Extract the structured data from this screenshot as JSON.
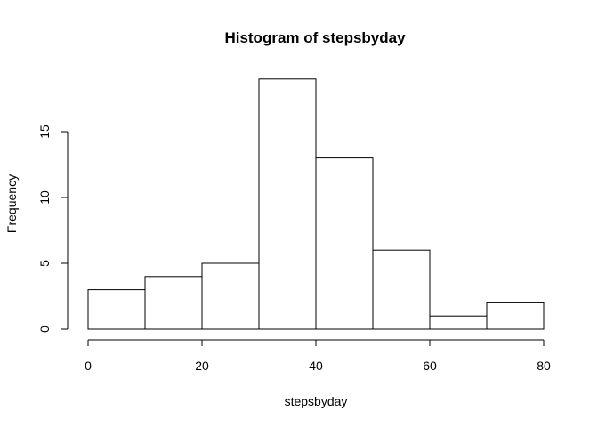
{
  "chart_data": {
    "type": "bar",
    "title": "Histogram of stepsbyday",
    "xlabel": "stepsbyday",
    "ylabel": "Frequency",
    "bins": [
      {
        "from": 0,
        "to": 10,
        "count": 3
      },
      {
        "from": 10,
        "to": 20,
        "count": 4
      },
      {
        "from": 20,
        "to": 30,
        "count": 5
      },
      {
        "from": 30,
        "to": 40,
        "count": 19
      },
      {
        "from": 40,
        "to": 50,
        "count": 13
      },
      {
        "from": 50,
        "to": 60,
        "count": 6
      },
      {
        "from": 60,
        "to": 70,
        "count": 1
      },
      {
        "from": 70,
        "to": 80,
        "count": 2
      }
    ],
    "xlim": [
      0,
      80
    ],
    "x_ticks": [
      "0",
      "20",
      "40",
      "60",
      "80"
    ],
    "y_ticks": [
      "0",
      "5",
      "10",
      "15"
    ],
    "grid": false,
    "bar_fill": "#ffffff",
    "bar_stroke": "#000000"
  }
}
